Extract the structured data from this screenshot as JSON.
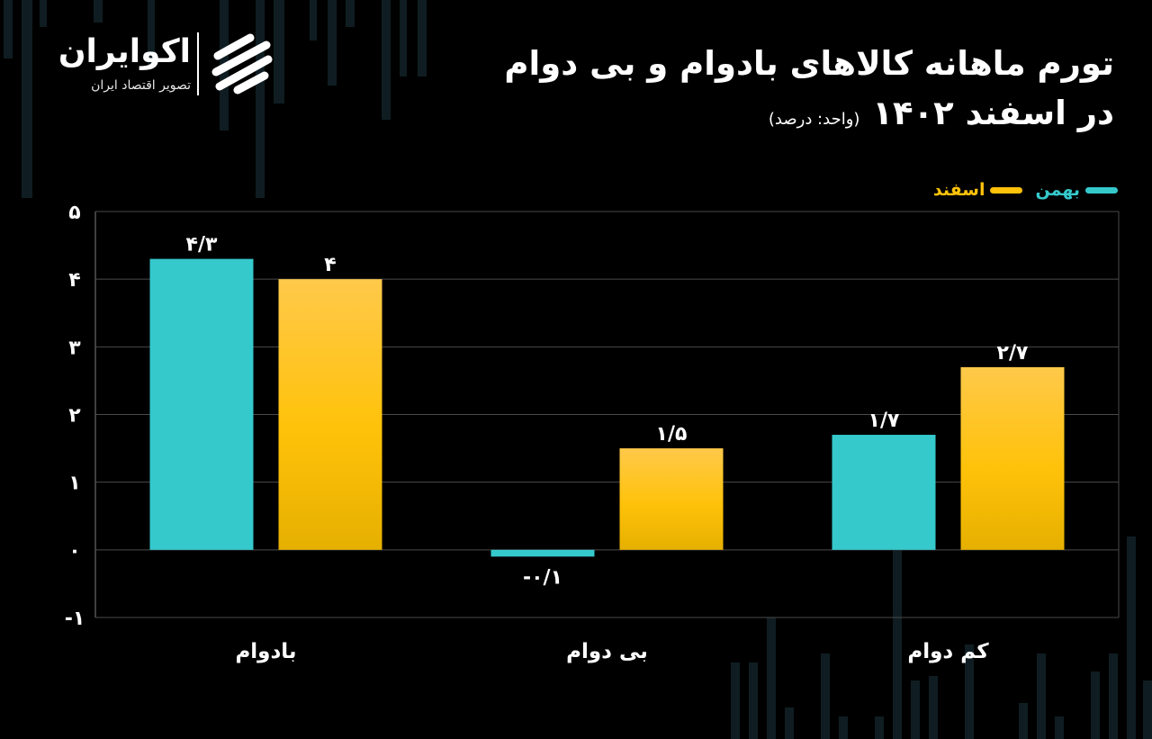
{
  "brand": {
    "name": "اکوایران",
    "tagline": "تصویر اقتصاد ایران"
  },
  "title": {
    "line1": "تورم ماهانه کالاهای بادوام و بی دوام",
    "line2": "در اسفند ۱۴۰۲",
    "unit_note": "(واحد: درصد)"
  },
  "colors": {
    "background": "#000000",
    "bahman": "#35C9CC",
    "esfand": "#FFC20A",
    "grid": "#4a4a4a",
    "text": "#ffffff"
  },
  "chart_data": {
    "type": "bar",
    "title": "تورم ماهانه کالاهای بادوام و بی دوام در اسفند ۱۴۰۲",
    "ylabel": "درصد",
    "xlabel": "",
    "categories": [
      "بادوام",
      "بی دوام",
      "کم دوام"
    ],
    "series": [
      {
        "name": "بهمن",
        "values": [
          4.3,
          -0.1,
          1.7
        ],
        "labels": [
          "۴/۳",
          "-۰/۱",
          "۱/۷"
        ]
      },
      {
        "name": "اسفند",
        "values": [
          4.0,
          1.5,
          2.7
        ],
        "labels": [
          "۴",
          "۱/۵",
          "۲/۷"
        ]
      }
    ],
    "ylim": [
      -1,
      5
    ],
    "yticks": [
      -1,
      0,
      1,
      2,
      3,
      4,
      5
    ],
    "ytick_labels": [
      "-۱",
      "۰",
      "۱",
      "۲",
      "۳",
      "۴",
      "۵"
    ],
    "grid": true,
    "legend_position": "top-right"
  }
}
